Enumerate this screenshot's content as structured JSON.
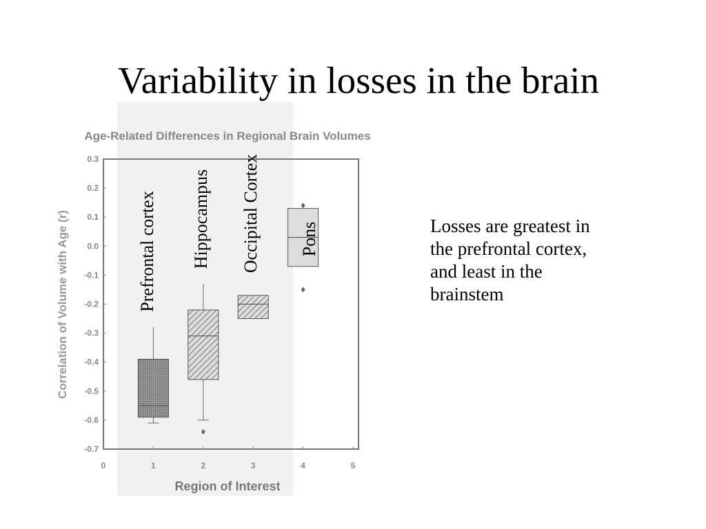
{
  "title": "Variability in losses in the brain",
  "body_text": "Losses are greatest in the prefrontal cortex, and least in the brainstem",
  "chart_data": {
    "type": "box",
    "title": "Age-Related Differences in Regional Brain Volumes",
    "x_label": "Region of Interest",
    "y_label": "Correlation of Volume with Age (r)",
    "xlim": [
      0,
      5
    ],
    "xticks": [
      0,
      1,
      2,
      3,
      4,
      5
    ],
    "ylim": [
      -0.7,
      0.3
    ],
    "yticks": [
      0.3,
      0.2,
      0.1,
      {
        "value": 0,
        "label": "0.0"
      },
      -0.1,
      -0.2,
      -0.3,
      -0.4,
      -0.5,
      -0.6,
      -0.7
    ],
    "color": "#666666",
    "boxes": [
      {
        "x": 1,
        "label": "Prefrontal cortex",
        "whisker_low": -0.61,
        "q1": -0.59,
        "median": -0.55,
        "q3": -0.39,
        "whisker_high": -0.28,
        "outliers": []
      },
      {
        "x": 2,
        "label": "Hippocampus",
        "whisker_low": -0.6,
        "q1": -0.46,
        "median": -0.31,
        "q3": -0.22,
        "whisker_high": -0.13,
        "outliers": [
          -0.64
        ]
      },
      {
        "x": 3,
        "label": "Occipital Cortex",
        "q1": -0.25,
        "median": -0.2,
        "q3": -0.17,
        "outliers": []
      },
      {
        "x": 4,
        "label": "Pons",
        "q1": -0.07,
        "median": 0.03,
        "q3": 0.13,
        "outliers": [
          0.14,
          -0.15
        ]
      }
    ]
  }
}
